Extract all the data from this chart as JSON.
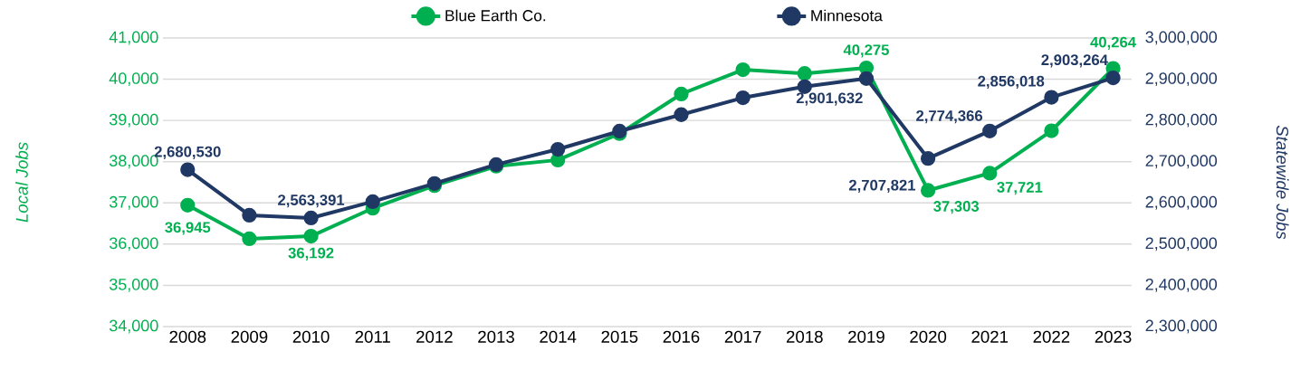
{
  "chart_data": {
    "type": "line",
    "categories": [
      "2008",
      "2009",
      "2010",
      "2011",
      "2012",
      "2013",
      "2014",
      "2015",
      "2016",
      "2017",
      "2018",
      "2019",
      "2020",
      "2021",
      "2022",
      "2023"
    ],
    "ylabel": "Local Jobs",
    "y2label": "Statewide Jobs",
    "ylim": [
      34000,
      41000
    ],
    "yticks": [
      {
        "value": 34000,
        "label": "34,000"
      },
      {
        "value": 35000,
        "label": "35,000"
      },
      {
        "value": 36000,
        "label": "36,000"
      },
      {
        "value": 37000,
        "label": "37,000"
      },
      {
        "value": 38000,
        "label": "38,000"
      },
      {
        "value": 39000,
        "label": "39,000"
      },
      {
        "value": 40000,
        "label": "40,000"
      },
      {
        "value": 41000,
        "label": "41,000"
      }
    ],
    "y2lim": [
      2300000,
      3000000
    ],
    "y2ticks": [
      {
        "value": 2300000,
        "label": "2,300,000"
      },
      {
        "value": 2400000,
        "label": "2,400,000"
      },
      {
        "value": 2500000,
        "label": "2,500,000"
      },
      {
        "value": 2600000,
        "label": "2,600,000"
      },
      {
        "value": 2700000,
        "label": "2,700,000"
      },
      {
        "value": 2800000,
        "label": "2,800,000"
      },
      {
        "value": 2900000,
        "label": "2,900,000"
      },
      {
        "value": 3000000,
        "label": "3,000,000"
      }
    ],
    "grid": "y",
    "legend": "top",
    "marker": "circle",
    "series": [
      {
        "name": "Blue Earth Co.",
        "color": "#00b050",
        "values": [
          36945,
          36130,
          36192,
          36870,
          37420,
          37890,
          38040,
          38680,
          39640,
          40230,
          40140,
          40275,
          37303,
          37721,
          38750,
          40264
        ],
        "value_labels": [
          "36,945",
          null,
          "36,192",
          null,
          null,
          null,
          null,
          null,
          null,
          null,
          null,
          "40,275",
          "37,303",
          "37,721",
          null,
          "40,264"
        ]
      },
      {
        "name": "Minnesota",
        "color": "#203864",
        "axis": "y2",
        "values": [
          2680530,
          2570000,
          2563391,
          2603000,
          2647000,
          2693000,
          2730000,
          2774000,
          2814000,
          2855000,
          2882000,
          2901632,
          2707821,
          2774366,
          2856018,
          2903264
        ],
        "value_labels": [
          "2,680,530",
          null,
          "2,563,391",
          null,
          null,
          null,
          null,
          null,
          null,
          null,
          null,
          "2,901,632",
          "2,707,821",
          "2,774,366",
          "2,856,018",
          "2,903,264"
        ]
      }
    ]
  }
}
